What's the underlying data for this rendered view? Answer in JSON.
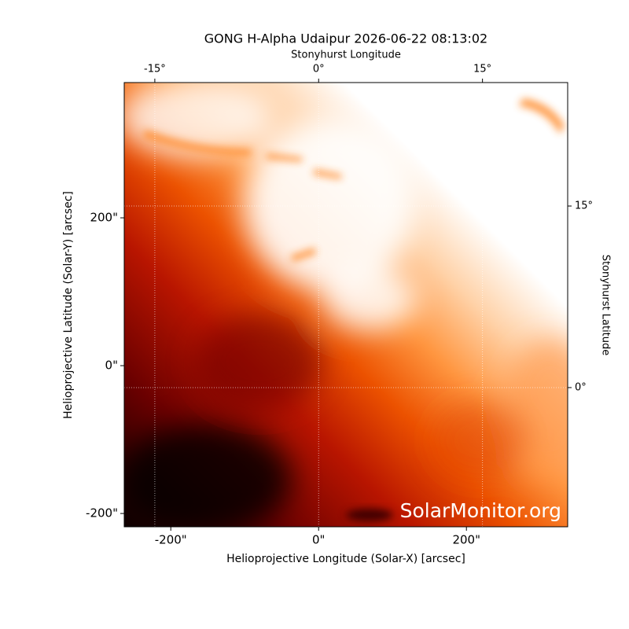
{
  "chart_data": {
    "type": "image",
    "title": "GONG H-Alpha Udaipur 2026-06-22 08:13:02",
    "x_label": "Helioprojective Longitude (Solar-X) [arcsec]",
    "y_label": "Helioprojective Latitude (Solar-Y) [arcsec]",
    "x2_label": "Stonyhurst Longitude",
    "y2_label": "Stonyhurst Latitude",
    "watermark": "SolarMonitor.org",
    "xlim": [
      -263,
      337
    ],
    "ylim": [
      -218,
      383
    ],
    "xticks": [
      {
        "value": -200,
        "label": "-200\""
      },
      {
        "value": 0,
        "label": "0\""
      },
      {
        "value": 200,
        "label": "200\""
      }
    ],
    "yticks": [
      {
        "value": -200,
        "label": "-200\""
      },
      {
        "value": 0,
        "label": "0\""
      },
      {
        "value": 200,
        "label": "200\""
      }
    ],
    "x2lim": [
      -17.8,
      22.8
    ],
    "y2lim": [
      -11.5,
      25.2
    ],
    "x2ticks": [
      {
        "value": -15,
        "label": "-15°"
      },
      {
        "value": 0,
        "label": "0°"
      },
      {
        "value": 15,
        "label": "15°"
      }
    ],
    "y2ticks": [
      {
        "value": 0,
        "label": "0°"
      },
      {
        "value": 15,
        "label": "15°"
      }
    ],
    "grid": true
  }
}
